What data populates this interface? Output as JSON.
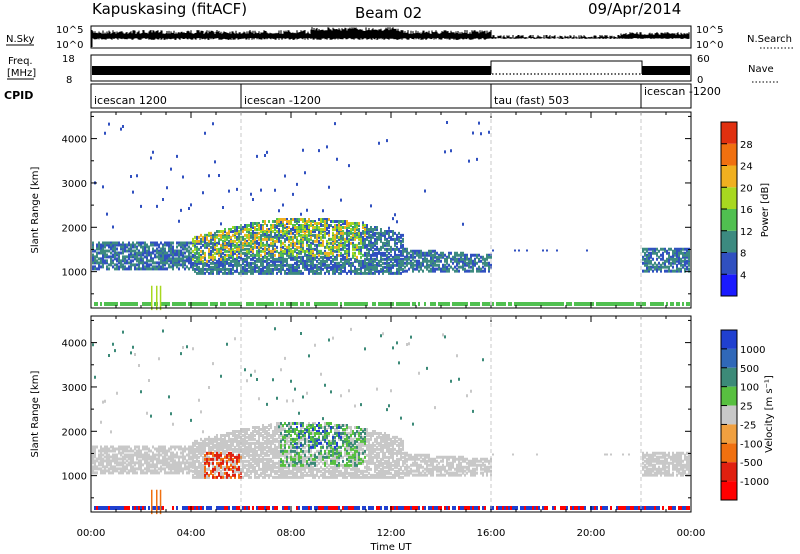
{
  "header": {
    "station": "Kapuskasing (fitACF)",
    "beam": "Beam 02",
    "date": "09/Apr/2014"
  },
  "noise_panel": {
    "left_label": "N.Sky",
    "left_ticks": [
      "10^5",
      "10^0"
    ],
    "right_label": "N.Search",
    "right_ticks": [
      "10^5",
      "10^0"
    ]
  },
  "freq_panel": {
    "left_label_1": "Freq.",
    "left_label_2": "[MHz]",
    "left_ticks": [
      "18",
      "8"
    ],
    "right_label": "Nave",
    "right_ticks": [
      "60",
      "0"
    ]
  },
  "cpid_panel": {
    "label": "CPID",
    "segments": [
      {
        "text": "icescan 1200",
        "start_h": 0,
        "end_h": 6
      },
      {
        "text": "icescan -1200",
        "start_h": 6,
        "end_h": 16
      },
      {
        "text": "tau (fast) 503",
        "start_h": 16,
        "end_h": 22
      },
      {
        "text": "icescan -1200",
        "start_h": 22,
        "end_h": 24
      }
    ]
  },
  "chart_data": [
    {
      "type": "heatmap",
      "name": "power",
      "ylabel": "Slant Range [km]",
      "yticks": [
        1000,
        2000,
        3000,
        4000
      ],
      "ylim": [
        180,
        4600
      ],
      "xlim": [
        0,
        24
      ],
      "colorbar": {
        "label": "Power [dB]",
        "ticks": [
          "4",
          "8",
          "12",
          "16",
          "20",
          "24",
          "28"
        ],
        "colors": [
          "#1a1aff",
          "#3050c0",
          "#3c8a80",
          "#50c050",
          "#a8d820",
          "#f0b020",
          "#f07010",
          "#e03010"
        ]
      }
    },
    {
      "type": "heatmap",
      "name": "velocity",
      "ylabel": "Slant Range [km]",
      "yticks": [
        1000,
        2000,
        3000,
        4000
      ],
      "ylim": [
        180,
        4600
      ],
      "xlim": [
        0,
        24
      ],
      "colorbar": {
        "label": "Velocity [m s⁻¹]",
        "ticks": [
          "1000",
          "500",
          "100",
          "25",
          "-25",
          "-100",
          "-500",
          "-1000"
        ],
        "colors": [
          "#2040d0",
          "#3068b8",
          "#3c8a78",
          "#58c040",
          "#c8c8c8",
          "#f0a040",
          "#f07010",
          "#e02010",
          "#ff0000"
        ]
      },
      "xticks": [
        "00:00",
        "04:00",
        "08:00",
        "12:00",
        "16:00",
        "20:00",
        "00:00"
      ],
      "xlabel": "Time UT"
    }
  ]
}
